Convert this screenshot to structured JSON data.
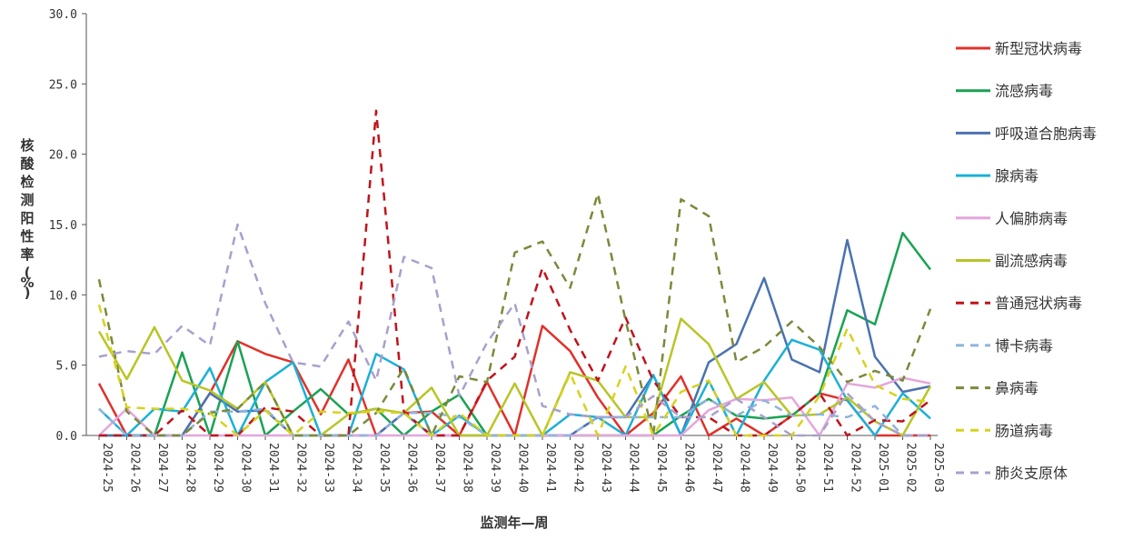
{
  "chart_data": {
    "type": "line",
    "title": "",
    "xlabel": "监测年—周",
    "ylabel": "核酸检测阳性率(%)",
    "ylim": [
      0,
      30
    ],
    "yticks": [
      "0.0",
      "5.0",
      "10.0",
      "15.0",
      "20.0",
      "25.0",
      "30.0"
    ],
    "grid": false,
    "legend_position": "right",
    "categories": [
      "2024-25",
      "2024-26",
      "2024-27",
      "2024-28",
      "2024-29",
      "2024-30",
      "2024-31",
      "2024-32",
      "2024-33",
      "2024-34",
      "2024-35",
      "2024-36",
      "2024-37",
      "2024-38",
      "2024-39",
      "2024-40",
      "2024-41",
      "2024-42",
      "2024-43",
      "2024-44",
      "2024-45",
      "2024-46",
      "2024-47",
      "2024-48",
      "2024-49",
      "2024-50",
      "2024-51",
      "2024-52",
      "2025-01",
      "2025-02",
      "2025-03"
    ],
    "series": [
      {
        "name": "新型冠状病毒",
        "color": "#e0312a",
        "dash": "solid",
        "values": [
          3.7,
          0,
          0,
          0,
          3.0,
          6.7,
          5.8,
          5.2,
          1.5,
          5.4,
          0,
          1.6,
          1.7,
          0,
          3.8,
          0,
          7.8,
          6.0,
          2.7,
          0,
          1.6,
          4.2,
          0,
          1.2,
          0,
          1.4,
          3.0,
          2.5,
          0,
          0,
          0
        ]
      },
      {
        "name": "流感病毒",
        "color": "#1aa252",
        "dash": "solid",
        "values": [
          0,
          0,
          0,
          5.9,
          0,
          6.7,
          0,
          1.7,
          3.3,
          1.5,
          1.9,
          0,
          1.7,
          2.9,
          0,
          0,
          0,
          0,
          0,
          0,
          0,
          1.4,
          2.6,
          1.4,
          1.2,
          1.4,
          3.0,
          8.9,
          7.9,
          14.4,
          11.8
        ]
      },
      {
        "name": "呼吸道合胞病毒",
        "color": "#4a72b0",
        "dash": "solid",
        "values": [
          0,
          0,
          0,
          0,
          3.0,
          1.7,
          1.8,
          0,
          0,
          0,
          0,
          1.6,
          0,
          0,
          0,
          0,
          0,
          0,
          1.3,
          1.3,
          4.3,
          0,
          5.2,
          6.5,
          11.2,
          5.4,
          4.5,
          13.9,
          5.6,
          3.1,
          3.5
        ]
      },
      {
        "name": "腺病毒",
        "color": "#1bb0d8",
        "dash": "solid",
        "values": [
          1.9,
          0,
          1.9,
          1.7,
          4.8,
          0,
          3.8,
          5.2,
          0,
          0,
          5.8,
          4.7,
          0,
          1.4,
          0,
          0,
          0,
          1.5,
          1.3,
          0,
          4.3,
          0,
          3.9,
          0,
          3.9,
          6.8,
          6.1,
          2.5,
          0,
          3.0,
          1.2
        ]
      },
      {
        "name": "人偏肺病毒",
        "color": "#e4a6dc",
        "dash": "solid",
        "values": [
          0,
          1.9,
          0,
          0,
          0,
          0,
          0,
          0,
          0,
          0,
          0,
          0,
          0,
          0,
          0,
          0,
          0,
          0,
          0,
          0,
          0,
          0,
          1.8,
          2.6,
          2.5,
          2.7,
          0,
          3.7,
          3.4,
          4.1,
          3.7
        ]
      },
      {
        "name": "副流感病毒",
        "color": "#b8c526",
        "dash": "solid",
        "values": [
          7.4,
          4.0,
          7.7,
          3.9,
          3.2,
          1.9,
          3.8,
          0,
          0,
          1.5,
          1.9,
          1.6,
          3.4,
          0,
          0,
          3.7,
          0,
          4.5,
          3.9,
          1.3,
          1.3,
          8.3,
          6.5,
          2.6,
          3.8,
          1.4,
          1.5,
          2.7,
          1.0,
          0,
          3.5
        ]
      },
      {
        "name": "普通冠状病毒",
        "color": "#c0131b",
        "dash": "dashed",
        "values": [
          0,
          0,
          0,
          1.8,
          0,
          0,
          2.0,
          1.7,
          0,
          0,
          23.1,
          1.7,
          0,
          0,
          3.9,
          5.6,
          11.9,
          7.5,
          3.9,
          8.4,
          3.9,
          1.3,
          1.3,
          0,
          0,
          1.4,
          3.0,
          0,
          1.1,
          1.0,
          2.5
        ]
      },
      {
        "name": "博卡病毒",
        "color": "#8fb4dc",
        "dash": "dashed",
        "values": [
          1.9,
          0,
          0,
          0,
          1.7,
          1.7,
          1.9,
          0,
          0,
          0,
          0,
          1.6,
          1.6,
          1.3,
          0,
          0,
          0,
          0,
          1.3,
          1.3,
          1.3,
          1.3,
          2.6,
          1.4,
          2.5,
          1.4,
          1.5,
          1.3,
          2.1,
          0,
          0
        ]
      },
      {
        "name": "鼻病毒",
        "color": "#7a8a3a",
        "dash": "dashed",
        "values": [
          11.1,
          1.7,
          0,
          0,
          1.6,
          1.9,
          3.8,
          0,
          0,
          0,
          1.6,
          4.8,
          0,
          4.2,
          3.8,
          13.0,
          13.8,
          10.5,
          17.2,
          8.2,
          0,
          16.8,
          15.6,
          5.2,
          6.3,
          8.1,
          6.3,
          3.8,
          4.6,
          3.9,
          9.0
        ]
      },
      {
        "name": "肠道病毒",
        "color": "#d7d21d",
        "dash": "dashed",
        "values": [
          9.3,
          2.0,
          1.9,
          1.9,
          1.6,
          0,
          1.8,
          0,
          1.7,
          1.6,
          1.7,
          1.6,
          0,
          1.6,
          0,
          0,
          0,
          4.4,
          0,
          4.9,
          0,
          3.1,
          3.9,
          0,
          0,
          0,
          2.8,
          7.6,
          3.6,
          2.6,
          2.4
        ]
      },
      {
        "name": "肺炎支原体",
        "color": "#a9a0cc",
        "dash": "dashed",
        "values": [
          5.6,
          6.0,
          5.8,
          7.8,
          6.4,
          15.0,
          9.4,
          5.2,
          4.9,
          8.1,
          3.9,
          12.7,
          11.9,
          2.8,
          6.6,
          9.4,
          2.1,
          1.5,
          1.3,
          1.3,
          2.8,
          1.3,
          1.3,
          2.6,
          1.3,
          0,
          0,
          3.0,
          1.0,
          0,
          0
        ]
      }
    ]
  }
}
